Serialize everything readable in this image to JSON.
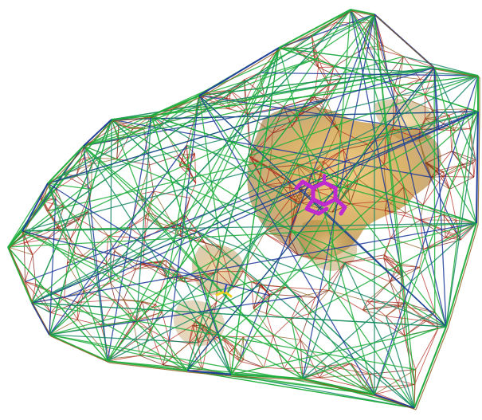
{
  "scene": {
    "background_color": "#ffffff",
    "colors": {
      "edge_red": "#b3261a",
      "edge_darkred": "#7a1a0f",
      "edge_brown": "#8a5a1c",
      "edge_green": "#1fae3c",
      "edge_teal": "#1c8a6a",
      "edge_blue": "#1c3a9a",
      "surface_gold": "#d7a23a",
      "surface_gold_dark": "#a4741c",
      "ligand_magenta": "#c02bd0",
      "ligand_yellow": "#f0d020"
    },
    "icons": [
      "molecular-mesh-illustration",
      "ligand-icon"
    ]
  }
}
